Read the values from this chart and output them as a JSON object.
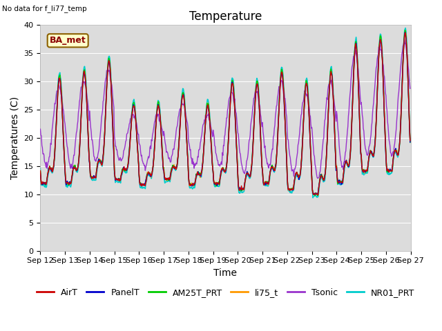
{
  "title": "Temperature",
  "ylabel": "Temperatures (C)",
  "xlabel": "Time",
  "no_data_text": "No data for f_li77_temp",
  "ba_met_label": "BA_met",
  "ylim": [
    0,
    40
  ],
  "yticks": [
    0,
    5,
    10,
    15,
    20,
    25,
    30,
    35,
    40
  ],
  "colors": {
    "AirT": "#cc0000",
    "PanelT": "#0000cc",
    "AM25T_PRT": "#00cc00",
    "li75_t": "#ff9900",
    "Tsonic": "#9933cc",
    "NR01_PRT": "#00cccc"
  },
  "legend_order": [
    "AirT",
    "PanelT",
    "AM25T_PRT",
    "li75_t",
    "Tsonic",
    "NR01_PRT"
  ],
  "background_color": "#dcdcdc",
  "title_fontsize": 12,
  "axis_fontsize": 10,
  "tick_fontsize": 8,
  "legend_fontsize": 9
}
